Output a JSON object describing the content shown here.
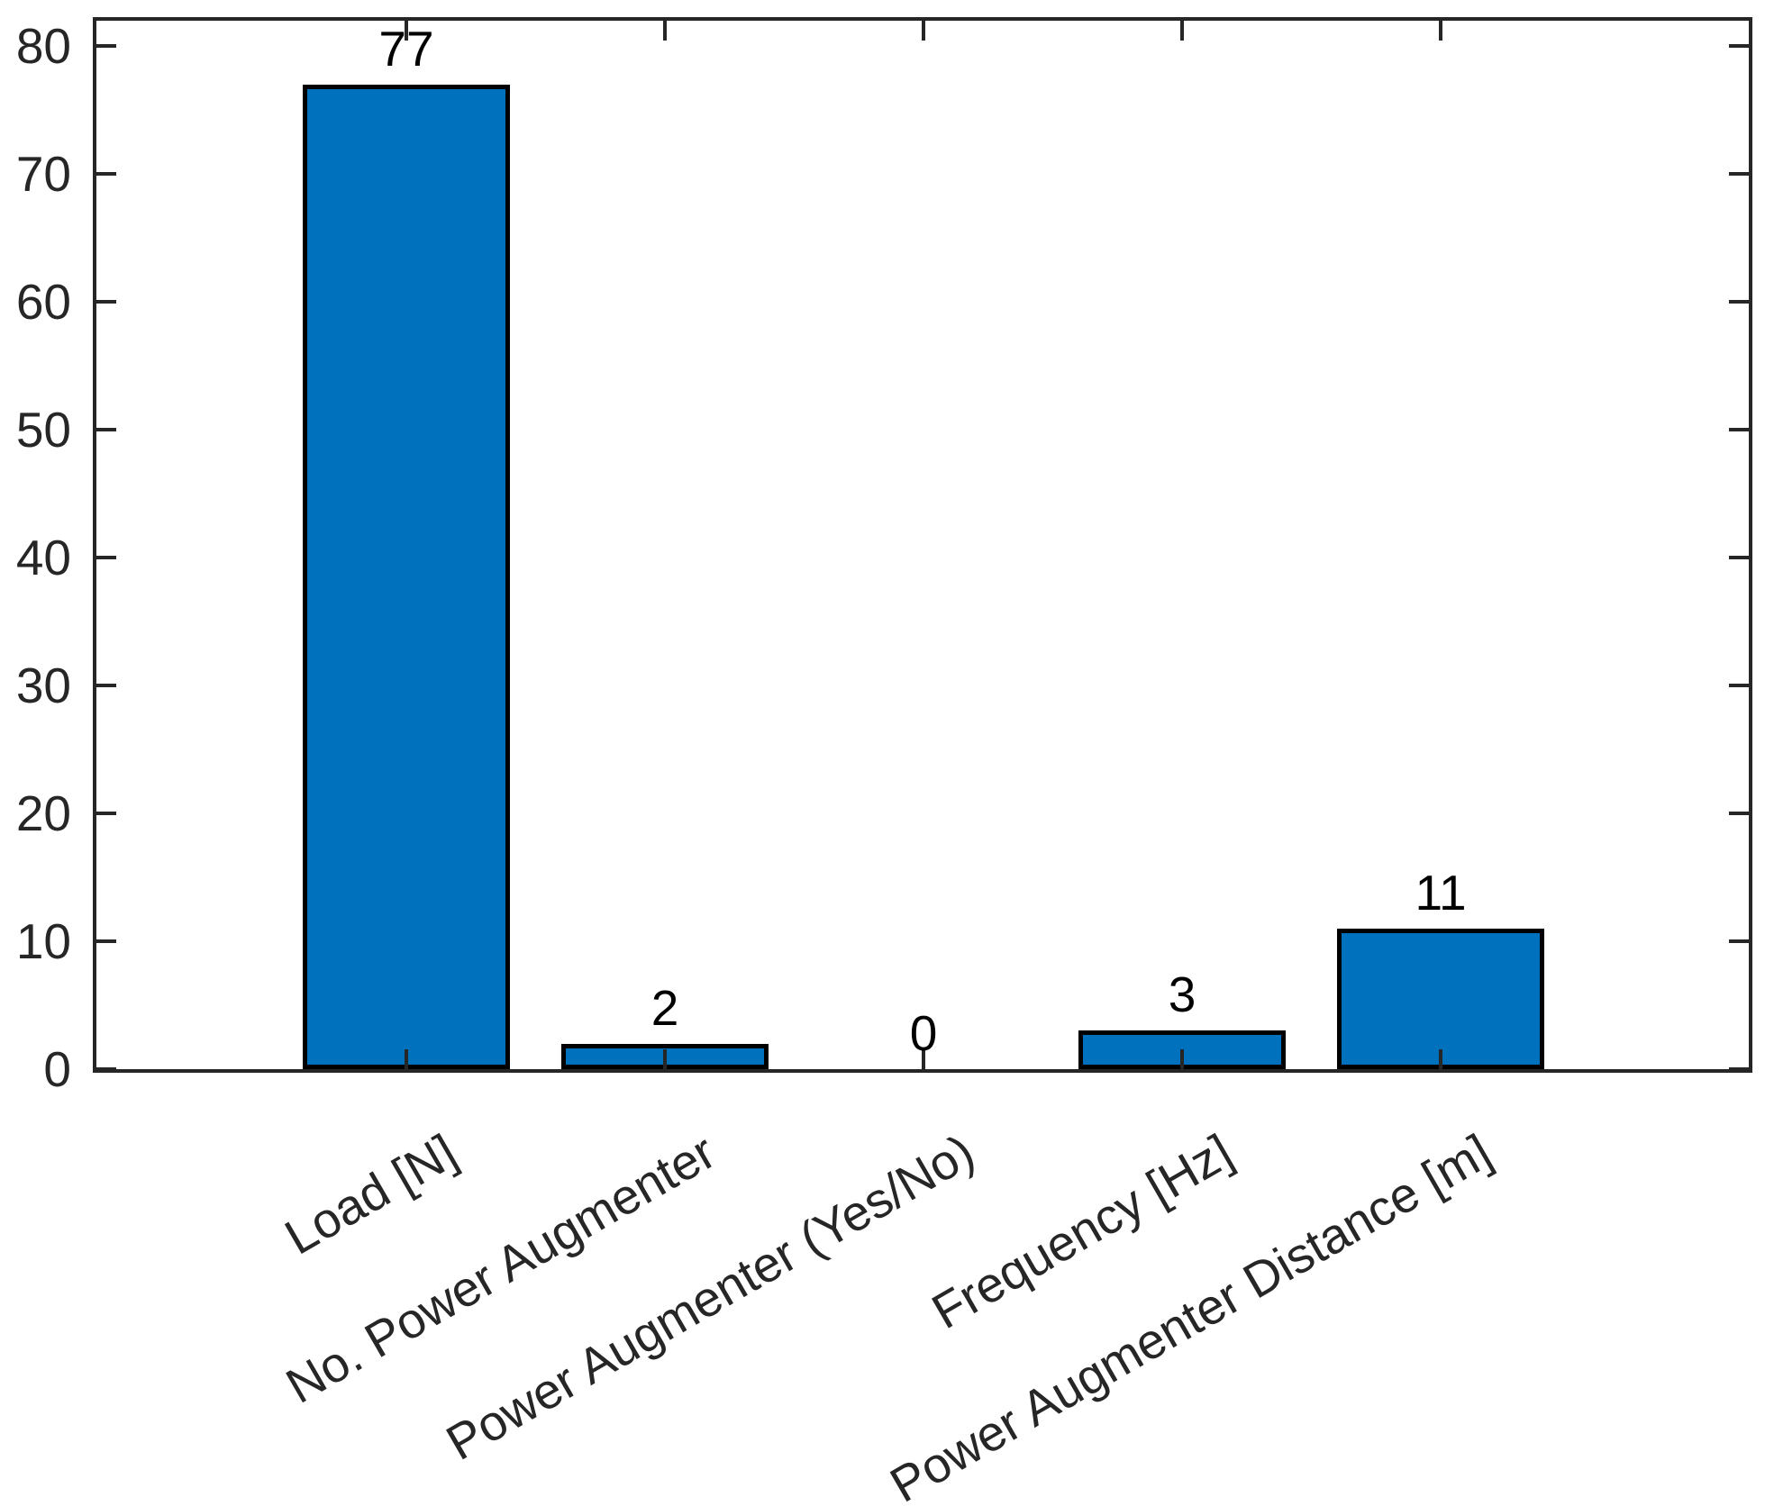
{
  "figure": {
    "background_color": "#ffffff"
  },
  "chart_data": {
    "type": "bar",
    "title": "",
    "xlabel": "",
    "ylabel": "",
    "categories": [
      "Load [N]",
      "No. Power Augmenter",
      "Power Augmenter (Yes/No)",
      "Frequency [Hz]",
      "Power Augmenter Distance [m]"
    ],
    "values": [
      77,
      2,
      0,
      3,
      11
    ],
    "bar_value_labels": [
      "77",
      "2",
      "0",
      "3",
      "11"
    ],
    "yticks": [
      0,
      10,
      20,
      30,
      40,
      50,
      60,
      70,
      80
    ],
    "ytick_labels": [
      "0",
      "10",
      "20",
      "30",
      "40",
      "50",
      "60",
      "70",
      "80"
    ],
    "ylim": [
      0,
      82
    ],
    "grid": false,
    "legend": "none",
    "bar_color": "#0072BD",
    "bar_edge_color": "#000000",
    "axis_color": "#262626",
    "value_label_color": "#000000",
    "xtick_rotation_deg": 30,
    "tick_direction": "in",
    "box": true
  }
}
